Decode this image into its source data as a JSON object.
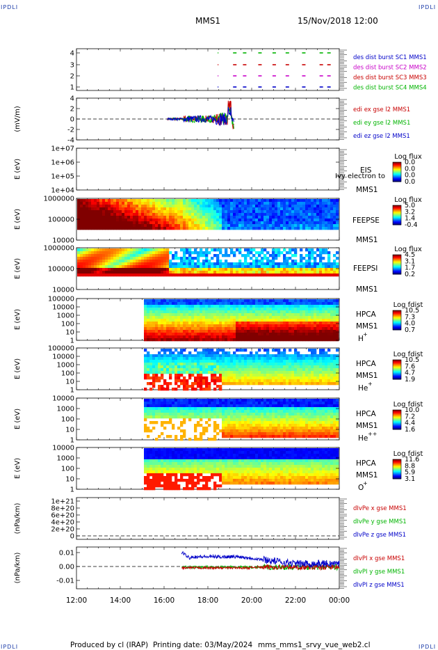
{
  "corner_label": "IPDLI",
  "header": {
    "spacecraft": "MMS1",
    "date_time": "15/Nov/2018 12:00"
  },
  "footer": {
    "produced_by": "Produced by  cl (IRAP)",
    "printing_date": "Printing date: 03/May/2024",
    "script_name": "mms_mms1_srvy_vue_web2.cl"
  },
  "time_axis": {
    "ticks": [
      "12:00",
      "14:00",
      "16:00",
      "18:00",
      "20:00",
      "22:00",
      "00:00"
    ],
    "start_hour": 12,
    "end_hour": 24
  },
  "colors": {
    "blue": "#0000c8",
    "magenta": "#c800c8",
    "red": "#c80000",
    "green": "#00b400",
    "dark_blue": "#1a3aa8"
  },
  "chart_data": [
    {
      "type": "scatter",
      "panel": "burst",
      "y_ticks": [
        "4",
        "3",
        "2",
        "1"
      ],
      "ylim": [
        0.5,
        4.5
      ],
      "legend": [
        {
          "name": "des dist burst SC1 MMS1",
          "color": "#0000c8"
        },
        {
          "name": "des dist burst SC2 MMS2",
          "color": "#c800c8"
        },
        {
          "name": "des dist burst SC3 MMS3",
          "color": "#c80000"
        },
        {
          "name": "des dist burst SC4 MMS4",
          "color": "#00b400"
        }
      ],
      "intervals_hours": [
        18.45,
        19.15,
        19.6,
        20.3,
        20.95,
        21.55,
        22.3,
        23.1,
        23.45
      ]
    },
    {
      "type": "line",
      "panel": "edi",
      "ylabel": "(mV/m)",
      "y_ticks": [
        "4",
        "2",
        "0",
        "-2",
        "-4"
      ],
      "ylim": [
        -4.5,
        4.5
      ],
      "legend": [
        {
          "name": "edi ex gse l2 MMS1",
          "color": "#c80000"
        },
        {
          "name": "edi ey gse l2 MMS1",
          "color": "#00b400"
        },
        {
          "name": "edi ez gse l2 MMS1",
          "color": "#0000c8"
        }
      ],
      "start_hour": 16.15,
      "end_hour": 19.2
    },
    {
      "type": "heatmap",
      "panel": "eis",
      "ylabel": "E (eV)",
      "y_ticks": [
        "1e+07",
        "1e+06",
        "1e+05",
        "1e+04"
      ],
      "labels": [
        "EIS",
        "MMS1"
      ],
      "overlay_text": "Ivy electron to",
      "colorbar": {
        "title": "Log flux",
        "ticks": [
          "0.0",
          "0.0",
          "0.0",
          "0.0"
        ]
      }
    },
    {
      "type": "heatmap",
      "panel": "feepse",
      "ylabel": "E (eV)",
      "y_ticks": [
        "1000000",
        "100000",
        "10000"
      ],
      "labels": [
        "FEEPSE",
        "MMS1"
      ],
      "colorbar": {
        "title": "Log flux",
        "ticks": [
          "5.0",
          "3.2",
          "1.4",
          "-0.4"
        ]
      }
    },
    {
      "type": "heatmap",
      "panel": "feepsi",
      "ylabel": "E (eV)",
      "y_ticks": [
        "1000000",
        "100000",
        "10000"
      ],
      "labels": [
        "FEEPSI",
        "MMS1"
      ],
      "colorbar": {
        "title": "Log flux",
        "ticks": [
          "4.5",
          "3.1",
          "1.7",
          "0.2"
        ]
      }
    },
    {
      "type": "heatmap",
      "panel": "hpca_h",
      "ylabel": "E (eV)",
      "y_ticks": [
        "100000",
        "10000",
        "1000",
        "100",
        "10",
        "1"
      ],
      "labels": [
        "HPCA",
        "MMS1"
      ],
      "species": "H",
      "charge": "+",
      "colorbar": {
        "title": "Log fdist",
        "ticks": [
          "10.5",
          "7.3",
          "4.0",
          "0.7"
        ]
      }
    },
    {
      "type": "heatmap",
      "panel": "hpca_he",
      "ylabel": "E (eV)",
      "y_ticks": [
        "100000",
        "10000",
        "1000",
        "100",
        "10",
        "1"
      ],
      "labels": [
        "HPCA",
        "MMS1"
      ],
      "species": "He",
      "charge": "+",
      "colorbar": {
        "title": "Log fdist",
        "ticks": [
          "10.5",
          "7.6",
          "4.7",
          "1.9"
        ]
      }
    },
    {
      "type": "heatmap",
      "panel": "hpca_hepp",
      "ylabel": "E (eV)",
      "y_ticks": [
        "10000",
        "1000",
        "100",
        "10",
        "1"
      ],
      "labels": [
        "HPCA",
        "MMS1"
      ],
      "species": "He",
      "charge": "++",
      "colorbar": {
        "title": "Log fdist",
        "ticks": [
          "10.0",
          "7.2",
          "4.4",
          "1.6"
        ]
      }
    },
    {
      "type": "heatmap",
      "panel": "hpca_o",
      "ylabel": "E (eV)",
      "y_ticks": [
        "10000",
        "1000",
        "100",
        "10",
        "1"
      ],
      "labels": [
        "HPCA",
        "MMS1"
      ],
      "species": "O",
      "charge": "+",
      "colorbar": {
        "title": "Log fdist",
        "ticks": [
          "11.6",
          "8.8",
          "5.9",
          "3.1"
        ]
      }
    },
    {
      "type": "line",
      "panel": "dpe",
      "ylabel": "(nPa/km)",
      "y_ticks": [
        "1e+21",
        "8e+20",
        "6e+20",
        "4e+20",
        "2e+20",
        "0"
      ],
      "ylim": [
        -1e+20,
        1.1e+21
      ],
      "legend": [
        {
          "name": "dIvPe x gse MMS1",
          "color": "#c80000"
        },
        {
          "name": "dIvPe y gse MMS1",
          "color": "#00b400"
        },
        {
          "name": "dIvPe z gse MMS1",
          "color": "#0000c8"
        }
      ]
    },
    {
      "type": "line",
      "panel": "dpi",
      "ylabel": "(nPa/km)",
      "y_ticks": [
        "0.01",
        "0.00",
        "-0.01"
      ],
      "ylim": [
        -0.016,
        0.014
      ],
      "legend": [
        {
          "name": "dIvPI x gse MMS1",
          "color": "#c80000"
        },
        {
          "name": "dIvPI y gse MMS1",
          "color": "#00b400"
        },
        {
          "name": "dIvPI z gse MMS1",
          "color": "#0000c8"
        }
      ],
      "start_hour": 16.8,
      "end_hour": 24
    }
  ]
}
